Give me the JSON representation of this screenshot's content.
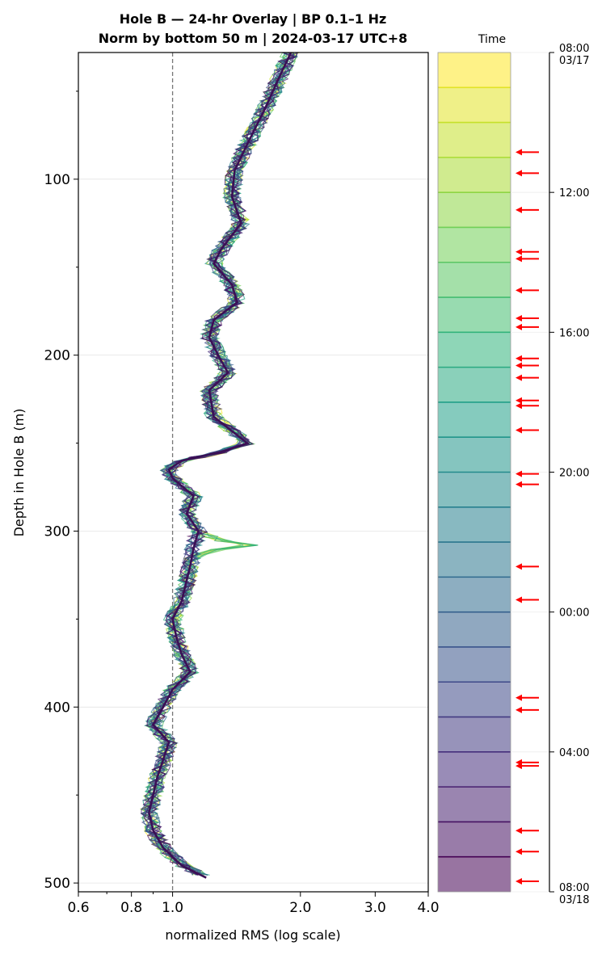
{
  "chart_data": {
    "type": "line",
    "title_line1": "Hole B — 24-hr Overlay  |  BP 0.1–1 Hz",
    "title_line2": "Norm by bottom 50 m  |  2024-03-17 UTC+8",
    "xlabel": "normalized RMS  (log scale)",
    "ylabel": "Depth in Hole B (m)",
    "x_scale": "log",
    "xlim": [
      0.6,
      4.0
    ],
    "ylim": [
      505,
      28
    ],
    "y_inverted": true,
    "x_ticks": [
      "0.6",
      "0.8",
      "1.0",
      "2.0",
      "3.0",
      "4.0"
    ],
    "x_tick_values": [
      0.6,
      0.8,
      1.0,
      2.0,
      3.0,
      4.0
    ],
    "y_ticks": [
      "100",
      "200",
      "300",
      "400",
      "500"
    ],
    "y_tick_values": [
      100,
      200,
      300,
      400,
      500
    ],
    "reference_line_x": 1.0,
    "grid": "horizontal",
    "highlight_color": "#3b1055",
    "colormap": "viridis",
    "depth_profile_median": {
      "depth": [
        28,
        40,
        60,
        80,
        95,
        110,
        125,
        140,
        148,
        160,
        170,
        180,
        190,
        200,
        210,
        220,
        235,
        250,
        255,
        260,
        265,
        270,
        280,
        290,
        300,
        310,
        320,
        340,
        350,
        360,
        370,
        380,
        390,
        400,
        410,
        420,
        430,
        440,
        450,
        460,
        470,
        480,
        490,
        497
      ],
      "rms": [
        1.9,
        1.8,
        1.65,
        1.5,
        1.4,
        1.38,
        1.45,
        1.3,
        1.25,
        1.38,
        1.42,
        1.25,
        1.22,
        1.28,
        1.35,
        1.22,
        1.25,
        1.5,
        1.3,
        1.05,
        0.98,
        1.0,
        1.12,
        1.08,
        1.15,
        1.12,
        1.1,
        1.05,
        1.0,
        1.02,
        1.05,
        1.1,
        1.0,
        0.95,
        0.9,
        0.98,
        0.95,
        0.92,
        0.9,
        0.88,
        0.9,
        0.95,
        1.05,
        1.2
      ]
    },
    "colorbar": {
      "label": "Time",
      "ticks": [
        "08:00\n03/17",
        "12:00",
        "16:00",
        "20:00",
        "00:00",
        "04:00",
        "08:00\n03/18"
      ],
      "tick_labels": [
        {
          "line1": "08:00",
          "line2": "03/17"
        },
        {
          "line1": "12:00",
          "line2": ""
        },
        {
          "line1": "16:00",
          "line2": ""
        },
        {
          "line1": "20:00",
          "line2": ""
        },
        {
          "line1": "00:00",
          "line2": ""
        },
        {
          "line1": "04:00",
          "line2": ""
        },
        {
          "line1": "08:00",
          "line2": "03/18"
        }
      ],
      "range_hours": [
        0,
        24
      ],
      "bands": 24,
      "arrow_color": "#ff0000",
      "arrow_hours": [
        2.85,
        3.45,
        4.5,
        5.7,
        5.9,
        6.8,
        7.6,
        7.85,
        8.75,
        8.95,
        9.3,
        9.95,
        10.1,
        10.8,
        12.05,
        12.35,
        14.7,
        15.65,
        18.45,
        18.8,
        20.3,
        20.4,
        22.25,
        22.85,
        23.7
      ]
    }
  }
}
